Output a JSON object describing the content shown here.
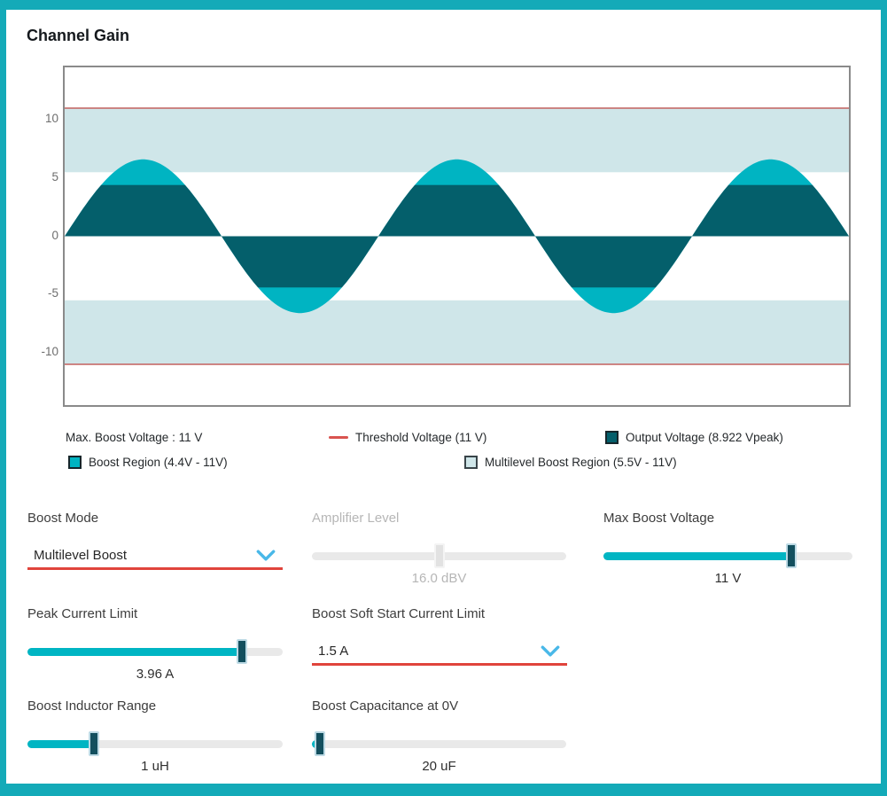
{
  "header": {
    "title": "Channel Gain"
  },
  "colors": {
    "frame_teal": "#14aab8",
    "accent_red_underline": "#e0443c",
    "chevron_blue": "#49b8e8",
    "slider_fill": "#00b5c3",
    "slider_thumb": "#134f5e"
  },
  "chart_data": {
    "type": "area",
    "title": "Channel Gain",
    "waveform": {
      "shape": "sine",
      "cycles": 2.5,
      "drawn_amplitude_v": 6.6,
      "output_vpeak": 8.922
    },
    "threshold_v": 11,
    "boost_region_v": [
      4.4,
      11
    ],
    "multilevel_region_v": [
      5.5,
      11
    ],
    "y_ticks": [
      10,
      5,
      0,
      -5,
      -10
    ],
    "ylim": [
      -14.5,
      14.5
    ],
    "grid": false,
    "legend_position": "below",
    "colors": {
      "output": "#045f6b",
      "boost_region": "#00b4c2",
      "multilevel_region": "#cfe6e9",
      "threshold": "#c4605f"
    }
  },
  "legend": {
    "items": [
      {
        "swatch": "none",
        "label": "Max. Boost Voltage : 11 V"
      },
      {
        "swatch": "line",
        "color": "#d9534f",
        "label": "Threshold Voltage (11 V)"
      },
      {
        "swatch": "square",
        "color": "#045f6b",
        "label": "Output Voltage (8.922 Vpeak)"
      },
      {
        "swatch": "square",
        "color": "#00b4c2",
        "label": "Boost Region (4.4V - 11V)"
      },
      {
        "swatch": "square",
        "color": "#cfe6e9",
        "label": "Multilevel Boost Region (5.5V - 11V)"
      }
    ]
  },
  "controls": {
    "boost_mode": {
      "label": "Boost Mode",
      "value": "Multilevel Boost",
      "type": "dropdown"
    },
    "amplifier_level": {
      "label": "Amplifier Level",
      "value": "16.0 dBV",
      "type": "slider",
      "percent": 50,
      "disabled": true
    },
    "max_boost_voltage": {
      "label": "Max Boost Voltage",
      "value": "11 V",
      "type": "slider",
      "percent": 75.5
    },
    "peak_current_limit": {
      "label": "Peak Current Limit",
      "value": "3.96 A",
      "type": "slider",
      "percent": 84
    },
    "boost_soft_start": {
      "label": "Boost Soft Start Current Limit",
      "value": "1.5 A",
      "type": "dropdown"
    },
    "boost_inductor_range": {
      "label": "Boost Inductor Range",
      "value": "1 uH",
      "type": "slider",
      "percent": 26
    },
    "boost_capacitance_0v": {
      "label": "Boost Capacitance at 0V",
      "value": "20 uF",
      "type": "slider",
      "percent": 3
    }
  }
}
